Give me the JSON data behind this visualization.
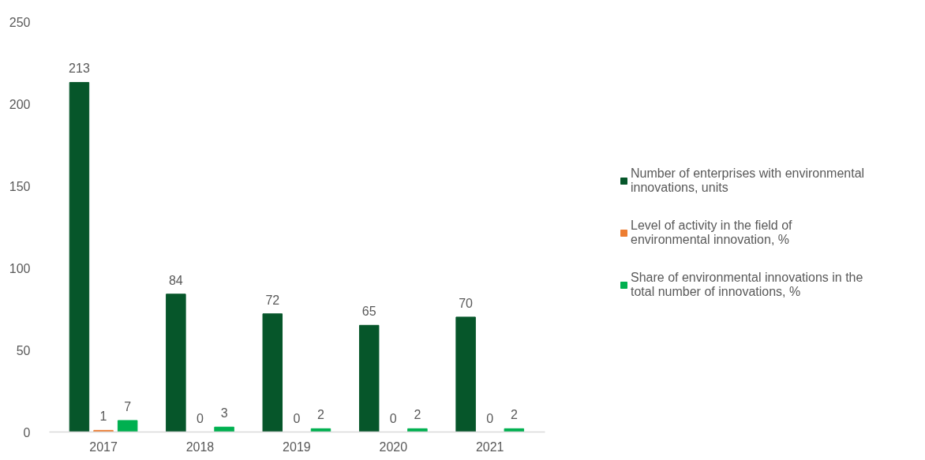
{
  "chart_data": {
    "type": "bar",
    "categories": [
      "2017",
      "2018",
      "2019",
      "2020",
      "2021"
    ],
    "series": [
      {
        "name": "Number of enterprises with environmental innovations, units",
        "color": "#06562a",
        "values": [
          213,
          84,
          72,
          65,
          70
        ]
      },
      {
        "name": "Level of activity in the field of environmental innovation, %",
        "color": "#ed7d31",
        "values": [
          1,
          0,
          0,
          0,
          0
        ]
      },
      {
        "name": "Share of environmental innovations in the total number of innovations, %",
        "color": "#00b050",
        "values": [
          7,
          3,
          2,
          2,
          2
        ]
      }
    ],
    "ylim": [
      0,
      250
    ],
    "yticks": [
      0,
      50,
      100,
      150,
      200,
      250
    ],
    "data_labels": true,
    "legend": "right"
  }
}
